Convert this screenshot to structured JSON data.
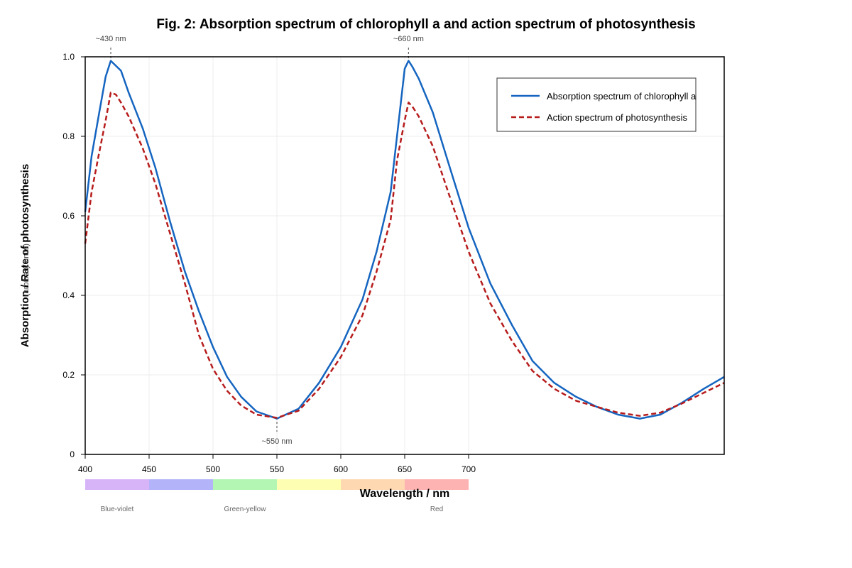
{
  "chart_data": {
    "type": "line",
    "title": "Fig. 2: Absorption spectrum of chlorophyll a and action spectrum of photosynthesis",
    "xlabel": "Wavelength / nm",
    "ylabel": "Absorption / Rate of photosynthesis",
    "ylabel_overlap": "(arbitrary units)",
    "xlim": [
      400,
      900
    ],
    "ylim": [
      0,
      1.0
    ],
    "x_ticks": [
      400,
      450,
      500,
      550,
      600,
      650,
      700
    ],
    "y_ticks": [
      0,
      0.2,
      0.4,
      0.6,
      0.8,
      1.0
    ],
    "y_tick_labels": [
      "0",
      "0.2",
      "0.4",
      "0.6",
      "0.8",
      "1.0"
    ],
    "grid": true,
    "legend_position": "top-right",
    "series": [
      {
        "name": "Absorption spectrum of chlorophyll a",
        "color": "#1565c0",
        "style": "solid",
        "x": [
          400,
          405,
          411,
          416,
          420,
          428,
          434,
          445,
          455,
          466,
          478,
          489,
          500,
          511,
          522,
          534,
          550,
          567,
          583,
          600,
          617,
          628,
          639,
          650,
          653,
          656,
          661,
          672,
          684,
          700,
          717,
          734,
          750,
          767,
          784,
          800,
          817,
          834,
          850,
          867,
          884,
          900
        ],
        "values": [
          0.61,
          0.75,
          0.86,
          0.95,
          0.99,
          0.965,
          0.91,
          0.82,
          0.72,
          0.59,
          0.46,
          0.36,
          0.27,
          0.195,
          0.145,
          0.108,
          0.09,
          0.115,
          0.18,
          0.27,
          0.39,
          0.51,
          0.66,
          0.97,
          0.99,
          0.975,
          0.945,
          0.86,
          0.735,
          0.57,
          0.43,
          0.325,
          0.235,
          0.18,
          0.145,
          0.12,
          0.1,
          0.09,
          0.1,
          0.13,
          0.165,
          0.195
        ]
      },
      {
        "name": "Action spectrum of photosynthesis",
        "color": "#b71c1c",
        "style": "dashed",
        "x": [
          400,
          405,
          411,
          416,
          420,
          424,
          428,
          434,
          445,
          455,
          466,
          478,
          489,
          500,
          511,
          522,
          534,
          550,
          567,
          583,
          600,
          617,
          628,
          639,
          644,
          650,
          653,
          656,
          661,
          672,
          684,
          700,
          717,
          734,
          750,
          767,
          784,
          800,
          817,
          834,
          850,
          867,
          884,
          900
        ],
        "values": [
          0.53,
          0.66,
          0.76,
          0.84,
          0.91,
          0.905,
          0.885,
          0.85,
          0.77,
          0.68,
          0.56,
          0.43,
          0.3,
          0.215,
          0.16,
          0.123,
          0.1,
          0.092,
          0.11,
          0.165,
          0.245,
          0.35,
          0.46,
          0.59,
          0.74,
          0.84,
          0.885,
          0.875,
          0.85,
          0.775,
          0.66,
          0.51,
          0.38,
          0.285,
          0.21,
          0.165,
          0.135,
          0.12,
          0.105,
          0.097,
          0.105,
          0.128,
          0.155,
          0.18
        ]
      }
    ],
    "annotations": [
      {
        "text": "~430 nm",
        "x": 420,
        "position": "above"
      },
      {
        "text": "~660 nm",
        "x": 653,
        "position": "above"
      },
      {
        "text": "~550 nm",
        "x": 550,
        "position": "below"
      }
    ],
    "spectrum_bands": [
      {
        "from": 400,
        "to": 450,
        "color": "#d7b4f8"
      },
      {
        "from": 450,
        "to": 500,
        "color": "#b3b3fa"
      },
      {
        "from": 500,
        "to": 550,
        "color": "#b3f5b3"
      },
      {
        "from": 550,
        "to": 600,
        "color": "#fefeb3"
      },
      {
        "from": 600,
        "to": 650,
        "color": "#fed8b1"
      },
      {
        "from": 650,
        "to": 700,
        "color": "#feb3b3"
      }
    ],
    "band_labels": [
      {
        "text": "Blue-violet",
        "x": 425
      },
      {
        "text": "Green-yellow",
        "x": 525
      },
      {
        "text": "Red",
        "x": 675
      }
    ]
  }
}
